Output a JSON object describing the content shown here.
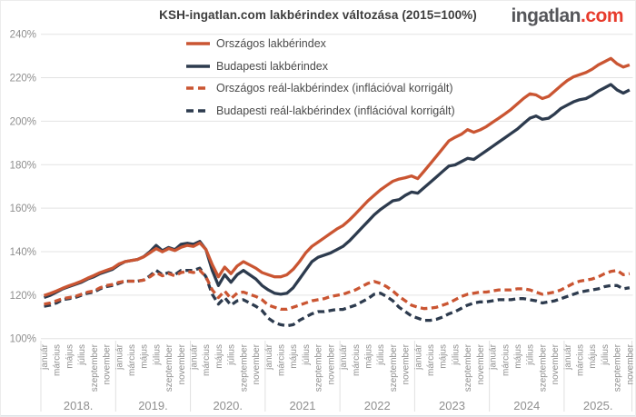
{
  "logo": {
    "name": "ingatlan",
    "tld": ".com"
  },
  "chart_data": {
    "type": "line",
    "title": "KSH-ingatlan.com lakbérindex változása (2015=100%)",
    "y_axis": {
      "unit": "%",
      "min": 100,
      "max": 240,
      "ticks": [
        240,
        220,
        200,
        180,
        160,
        140,
        120,
        100
      ],
      "grid": true
    },
    "x_axis": {
      "years": [
        "2018.",
        "2019.",
        "2020.",
        "2021",
        "2022",
        "2023",
        "2024",
        "2025."
      ],
      "month_tick_labels": [
        "január",
        "március",
        "május",
        "július",
        "szeptember",
        "november"
      ],
      "months_per_year": 12,
      "last_month_index": 94
    },
    "legend_position": "top-left-inside",
    "series": [
      {
        "name": "Országos lakbérindex",
        "color": "#ca5532",
        "style": "solid",
        "values": [
          119.8,
          120.8,
          121.9,
          123.2,
          124.3,
          125.3,
          126.4,
          127.8,
          129.0,
          130.4,
          131.4,
          132.4,
          134.3,
          135.4,
          135.9,
          136.4,
          137.6,
          139.5,
          141.4,
          139.9,
          141.4,
          140.5,
          142.0,
          142.9,
          142.4,
          144.0,
          141.0,
          134.0,
          128.4,
          132.9,
          129.9,
          133.4,
          135.4,
          133.9,
          132.4,
          130.4,
          129.4,
          128.4,
          128.4,
          129.4,
          131.9,
          135.4,
          139.4,
          142.4,
          144.4,
          146.4,
          148.4,
          150.4,
          152.0,
          154.5,
          157.4,
          160.4,
          163.4,
          165.9,
          168.4,
          170.4,
          172.4,
          173.4,
          174.0,
          174.8,
          173.6,
          177.0,
          180.4,
          183.9,
          187.4,
          191.0,
          192.6,
          194.0,
          196.1,
          194.9,
          196.0,
          197.5,
          199.5,
          201.4,
          203.4,
          205.5,
          208.0,
          210.5,
          212.6,
          212.1,
          210.4,
          211.4,
          213.9,
          216.4,
          218.7,
          220.4,
          221.4,
          222.4,
          223.9,
          225.9,
          227.4,
          228.9,
          226.4,
          224.9,
          225.9
        ]
      },
      {
        "name": "Budapesti lakbérindex",
        "color": "#2d3b4e",
        "style": "solid",
        "values": [
          118.9,
          119.9,
          121.4,
          122.9,
          123.9,
          124.9,
          125.9,
          127.4,
          128.4,
          129.9,
          130.9,
          131.9,
          133.9,
          135.4,
          135.9,
          136.4,
          137.7,
          140.0,
          142.9,
          140.4,
          141.9,
          140.9,
          143.4,
          143.9,
          143.4,
          144.7,
          140.9,
          131.4,
          124.4,
          129.4,
          125.9,
          129.4,
          131.4,
          129.4,
          127.4,
          124.4,
          122.4,
          120.9,
          120.4,
          120.9,
          123.4,
          127.4,
          131.4,
          135.4,
          137.4,
          138.4,
          139.4,
          140.9,
          142.4,
          144.9,
          147.9,
          150.9,
          153.9,
          156.9,
          159.4,
          161.4,
          163.4,
          163.9,
          165.9,
          167.4,
          166.9,
          169.4,
          171.9,
          174.4,
          176.9,
          179.4,
          179.9,
          181.4,
          182.9,
          182.4,
          184.4,
          186.4,
          188.4,
          190.4,
          192.4,
          194.4,
          196.4,
          198.9,
          201.4,
          202.4,
          200.9,
          201.4,
          203.4,
          205.9,
          207.4,
          208.9,
          209.9,
          210.4,
          211.9,
          213.9,
          215.4,
          216.9,
          214.4,
          212.9,
          214.4
        ]
      },
      {
        "name": "Országos reál-lakbérindex (inflációval korrigált)",
        "color": "#ca5532",
        "style": "dashed",
        "values": [
          115.9,
          116.4,
          117.4,
          118.4,
          118.9,
          119.4,
          120.4,
          121.4,
          121.9,
          123.4,
          124.4,
          124.9,
          125.9,
          126.4,
          126.4,
          126.4,
          126.9,
          128.4,
          130.4,
          128.9,
          129.9,
          128.9,
          130.4,
          130.9,
          130.4,
          131.4,
          128.4,
          122.4,
          118.9,
          121.9,
          118.4,
          120.9,
          121.4,
          120.4,
          119.4,
          117.9,
          115.4,
          114.4,
          113.5,
          113.5,
          114.4,
          115.4,
          116.4,
          117.4,
          117.9,
          118.4,
          119.4,
          119.9,
          120.4,
          121.4,
          122.4,
          123.9,
          125.4,
          126.3,
          125.4,
          123.9,
          121.9,
          119.4,
          117.4,
          115.4,
          114.4,
          113.8,
          114.0,
          114.4,
          115.4,
          116.4,
          117.9,
          119.4,
          120.4,
          120.9,
          121.4,
          121.4,
          121.9,
          122.4,
          122.4,
          122.4,
          122.9,
          122.9,
          122.4,
          121.4,
          120.4,
          120.9,
          121.4,
          122.4,
          123.9,
          125.4,
          126.4,
          126.9,
          127.4,
          128.4,
          129.9,
          130.9,
          131.4,
          129.4,
          129.9
        ]
      },
      {
        "name": "Budapesti reál-lakbérindex (inflációval korrigált)",
        "color": "#2d3b4e",
        "style": "dashed",
        "values": [
          114.9,
          115.4,
          116.4,
          117.9,
          118.4,
          118.9,
          119.9,
          120.9,
          121.4,
          122.9,
          123.9,
          124.4,
          125.4,
          126.4,
          126.4,
          126.4,
          126.9,
          128.9,
          131.4,
          129.4,
          130.4,
          129.4,
          131.4,
          131.4,
          131.4,
          132.4,
          128.4,
          120.4,
          115.9,
          118.9,
          115.4,
          117.4,
          117.9,
          116.4,
          114.9,
          112.9,
          109.4,
          107.4,
          106.4,
          105.9,
          106.4,
          108.4,
          109.9,
          111.4,
          112.4,
          112.4,
          112.9,
          113.4,
          113.4,
          114.4,
          115.4,
          116.9,
          118.4,
          120.4,
          120.9,
          119.4,
          117.4,
          114.4,
          112.4,
          110.4,
          109.4,
          108.4,
          108.4,
          108.9,
          109.9,
          111.4,
          112.4,
          113.9,
          115.4,
          116.4,
          116.9,
          116.9,
          117.4,
          117.9,
          117.9,
          117.9,
          118.4,
          118.4,
          117.9,
          117.4,
          116.4,
          116.9,
          117.4,
          118.4,
          119.4,
          120.4,
          121.4,
          121.9,
          122.4,
          122.9,
          123.9,
          124.4,
          124.4,
          122.9,
          123.4
        ]
      }
    ],
    "style_hints": {
      "grid_color": "#e3e3e3",
      "axis_text_color": "#8f8f8f",
      "separator_color": "#e0e0e0",
      "bottom_rule_color": "#dce1e6"
    }
  }
}
